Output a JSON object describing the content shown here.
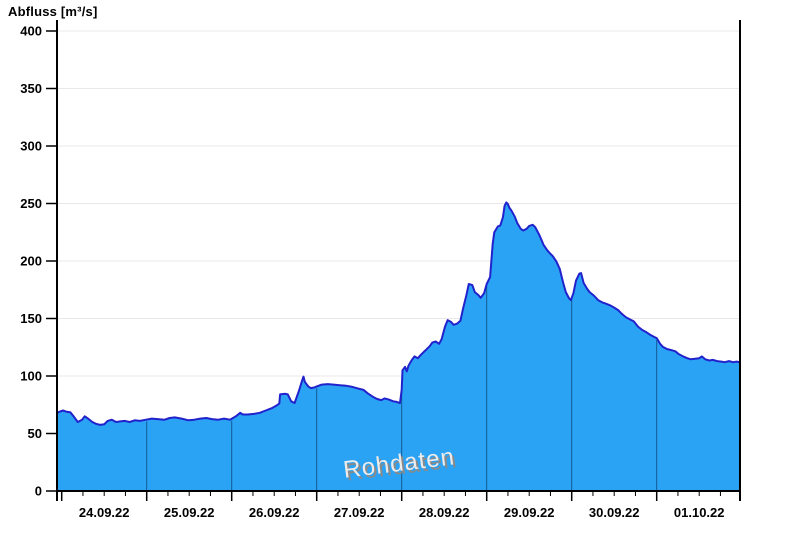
{
  "page": {
    "title": "Abfluss [m³/s]"
  },
  "chart_data": {
    "type": "area",
    "title": "Abfluss [m³/s]",
    "ylabel": "Abfluss [m³/s]",
    "unit": "m³/s",
    "watermark": "Rohdaten",
    "ylim": [
      0,
      400
    ],
    "y_ticks": [
      0,
      50,
      100,
      150,
      200,
      250,
      300,
      350,
      400
    ],
    "x_tick_dates": [
      "24.09.22",
      "25.09.22",
      "26.09.22",
      "27.09.22",
      "28.09.22",
      "29.09.22",
      "30.09.22",
      "01.10.22"
    ],
    "x_minor_tick_hours": 6,
    "x_domain_days": [
      -0.055,
      7.98
    ],
    "grid": "horizontal",
    "legend": "none",
    "colors": {
      "area_fill": "#2AA3F5",
      "line": "#2222CC",
      "day_gridline": "rgba(0,30,70,0.55)",
      "grid": "#e8e8e8",
      "axis": "#000000",
      "tick_label": "#000000",
      "watermark_fill": "#ececec",
      "watermark_shadow": "#8a8a8a"
    },
    "series": [
      {
        "name": "Abfluss Rohdaten",
        "points_day_value": [
          [
            -0.055,
            68
          ],
          [
            -0.02,
            69
          ],
          [
            0.015,
            70
          ],
          [
            0.05,
            69
          ],
          [
            0.1,
            68.5
          ],
          [
            0.14,
            65
          ],
          [
            0.19,
            60
          ],
          [
            0.24,
            62
          ],
          [
            0.27,
            65
          ],
          [
            0.31,
            63
          ],
          [
            0.36,
            60
          ],
          [
            0.4,
            58.5
          ],
          [
            0.45,
            57.5
          ],
          [
            0.5,
            58
          ],
          [
            0.54,
            61
          ],
          [
            0.59,
            62
          ],
          [
            0.64,
            60
          ],
          [
            0.69,
            60.5
          ],
          [
            0.74,
            61
          ],
          [
            0.8,
            60
          ],
          [
            0.86,
            61.5
          ],
          [
            0.92,
            61
          ],
          [
            0.99,
            62
          ],
          [
            1.06,
            63
          ],
          [
            1.13,
            62.5
          ],
          [
            1.21,
            62
          ],
          [
            1.27,
            63.5
          ],
          [
            1.33,
            64
          ],
          [
            1.41,
            63
          ],
          [
            1.49,
            61.5
          ],
          [
            1.56,
            62
          ],
          [
            1.63,
            63
          ],
          [
            1.7,
            63.5
          ],
          [
            1.77,
            62.5
          ],
          [
            1.84,
            62
          ],
          [
            1.91,
            63
          ],
          [
            1.98,
            62
          ],
          [
            2.05,
            65
          ],
          [
            2.1,
            68
          ],
          [
            2.13,
            66.5
          ],
          [
            2.19,
            66.5
          ],
          [
            2.26,
            67
          ],
          [
            2.33,
            68
          ],
          [
            2.4,
            70
          ],
          [
            2.47,
            72
          ],
          [
            2.52,
            74
          ],
          [
            2.56,
            76
          ],
          [
            2.57,
            84
          ],
          [
            2.63,
            84.5
          ],
          [
            2.66,
            84
          ],
          [
            2.7,
            78
          ],
          [
            2.74,
            76.5
          ],
          [
            2.79,
            87
          ],
          [
            2.83,
            96.5
          ],
          [
            2.845,
            99.5
          ],
          [
            2.86,
            95
          ],
          [
            2.9,
            91
          ],
          [
            2.93,
            89.5
          ],
          [
            2.97,
            90
          ],
          [
            3.0,
            91
          ],
          [
            3.06,
            92.5
          ],
          [
            3.13,
            93
          ],
          [
            3.2,
            92.5
          ],
          [
            3.27,
            92
          ],
          [
            3.35,
            91.5
          ],
          [
            3.42,
            90.5
          ],
          [
            3.49,
            89
          ],
          [
            3.55,
            88
          ],
          [
            3.6,
            85
          ],
          [
            3.66,
            82
          ],
          [
            3.71,
            80
          ],
          [
            3.76,
            79
          ],
          [
            3.8,
            80.5
          ],
          [
            3.85,
            79.5
          ],
          [
            3.9,
            78
          ],
          [
            3.94,
            77.5
          ],
          [
            3.98,
            76.5
          ],
          [
            4.0,
            88
          ],
          [
            4.01,
            105
          ],
          [
            4.04,
            108
          ],
          [
            4.06,
            104
          ],
          [
            4.08,
            109
          ],
          [
            4.12,
            114
          ],
          [
            4.15,
            117
          ],
          [
            4.19,
            115.5
          ],
          [
            4.22,
            118
          ],
          [
            4.26,
            121
          ],
          [
            4.29,
            123
          ],
          [
            4.33,
            126
          ],
          [
            4.36,
            129
          ],
          [
            4.4,
            130
          ],
          [
            4.44,
            128
          ],
          [
            4.47,
            132
          ],
          [
            4.51,
            143
          ],
          [
            4.54,
            148.5
          ],
          [
            4.58,
            147
          ],
          [
            4.61,
            144.5
          ],
          [
            4.65,
            145.5
          ],
          [
            4.69,
            148
          ],
          [
            4.72,
            158
          ],
          [
            4.76,
            170
          ],
          [
            4.79,
            180
          ],
          [
            4.83,
            179
          ],
          [
            4.86,
            173
          ],
          [
            4.9,
            170.5
          ],
          [
            4.93,
            168
          ],
          [
            4.97,
            172
          ],
          [
            5.0,
            180
          ],
          [
            5.04,
            186
          ],
          [
            5.05,
            195
          ],
          [
            5.07,
            215
          ],
          [
            5.09,
            225
          ],
          [
            5.13,
            230
          ],
          [
            5.16,
            231
          ],
          [
            5.19,
            238
          ],
          [
            5.21,
            248
          ],
          [
            5.23,
            251
          ],
          [
            5.25,
            249.5
          ],
          [
            5.27,
            246
          ],
          [
            5.29,
            244
          ],
          [
            5.33,
            238.5
          ],
          [
            5.36,
            233
          ],
          [
            5.4,
            228
          ],
          [
            5.43,
            226.5
          ],
          [
            5.47,
            228
          ],
          [
            5.5,
            230.5
          ],
          [
            5.54,
            231.5
          ],
          [
            5.57,
            229.5
          ],
          [
            5.62,
            222.5
          ],
          [
            5.67,
            214
          ],
          [
            5.71,
            209.5
          ],
          [
            5.74,
            207
          ],
          [
            5.78,
            204
          ],
          [
            5.82,
            199.5
          ],
          [
            5.86,
            193
          ],
          [
            5.9,
            181
          ],
          [
            5.93,
            173
          ],
          [
            5.97,
            167.5
          ],
          [
            5.99,
            166
          ],
          [
            6.02,
            172
          ],
          [
            6.05,
            183
          ],
          [
            6.09,
            189
          ],
          [
            6.11,
            189.5
          ],
          [
            6.14,
            181
          ],
          [
            6.18,
            176
          ],
          [
            6.21,
            173
          ],
          [
            6.26,
            170
          ],
          [
            6.31,
            166
          ],
          [
            6.36,
            164
          ],
          [
            6.4,
            163
          ],
          [
            6.45,
            161.5
          ],
          [
            6.5,
            159.5
          ],
          [
            6.55,
            157
          ],
          [
            6.59,
            154
          ],
          [
            6.64,
            151
          ],
          [
            6.69,
            149
          ],
          [
            6.73,
            147.5
          ],
          [
            6.78,
            143
          ],
          [
            6.83,
            140
          ],
          [
            6.88,
            138
          ],
          [
            6.92,
            136
          ],
          [
            6.97,
            134
          ],
          [
            7.0,
            133
          ],
          [
            7.04,
            128
          ],
          [
            7.07,
            125.5
          ],
          [
            7.12,
            123.5
          ],
          [
            7.17,
            122.5
          ],
          [
            7.22,
            121.5
          ],
          [
            7.26,
            119
          ],
          [
            7.31,
            117
          ],
          [
            7.36,
            115.5
          ],
          [
            7.4,
            114.5
          ],
          [
            7.45,
            115
          ],
          [
            7.5,
            115.5
          ],
          [
            7.53,
            117
          ],
          [
            7.57,
            114.5
          ],
          [
            7.62,
            113.5
          ],
          [
            7.66,
            114
          ],
          [
            7.71,
            113
          ],
          [
            7.76,
            112.5
          ],
          [
            7.8,
            112
          ],
          [
            7.85,
            113
          ],
          [
            7.9,
            112
          ],
          [
            7.94,
            112.5
          ],
          [
            7.98,
            112
          ]
        ]
      }
    ]
  }
}
